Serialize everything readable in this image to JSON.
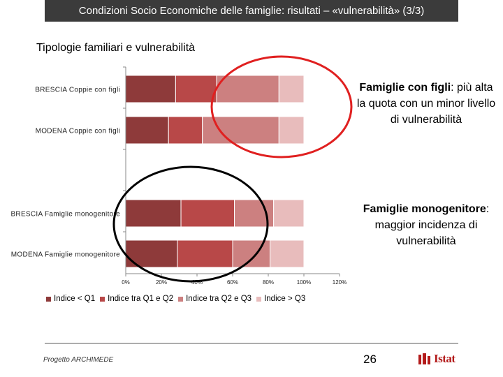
{
  "header": {
    "title": "Condizioni Socio Economiche delle famiglie: risultati – «vulnerabilità» (3/3)"
  },
  "subtitle": "Tipologie familiari e vulnerabilità",
  "annotations": [
    {
      "bold": "Famiglie con figli",
      "rest": ": più alta la quota con un minor livello di vulnerabilità"
    },
    {
      "bold": "Famiglie monogenitore",
      "rest": ": maggior incidenza di vulnerabilità"
    }
  ],
  "chart_data": {
    "type": "bar",
    "orientation": "horizontal",
    "stacked": "percent",
    "categories": [
      "BRESCIA Coppie con figli",
      "MODENA Coppie con figli",
      "BRESCIA Famiglie monogenitore",
      "MODENA Famiglie monogenitore"
    ],
    "series": [
      {
        "name": "Indice < Q1",
        "color": "#8e3a3a",
        "values": [
          28,
          24,
          31,
          29
        ]
      },
      {
        "name": "Indice tra Q1 e Q2",
        "color": "#b84848",
        "values": [
          23,
          19,
          30,
          31
        ]
      },
      {
        "name": "Indice tra Q2 e Q3",
        "color": "#cc8080",
        "values": [
          35,
          43,
          22,
          21
        ]
      },
      {
        "name": "Indice > Q3",
        "color": "#e8bcbc",
        "values": [
          14,
          14,
          17,
          19
        ]
      }
    ],
    "xticks": [
      "0%",
      "20%",
      "40%",
      "60%",
      "80%",
      "100%",
      "120%"
    ],
    "xlim": [
      0,
      120
    ],
    "legend_position": "bottom",
    "grid": false,
    "highlight_circles": [
      {
        "color": "#e02020",
        "around": "Coppie con figli"
      },
      {
        "color": "#000000",
        "around": "Famiglie monogenitore"
      }
    ]
  },
  "footer": {
    "project": "Progetto ARCHIMEDE",
    "page": "26",
    "logo_text": "Istat",
    "logo_color": "#b31b1b"
  }
}
